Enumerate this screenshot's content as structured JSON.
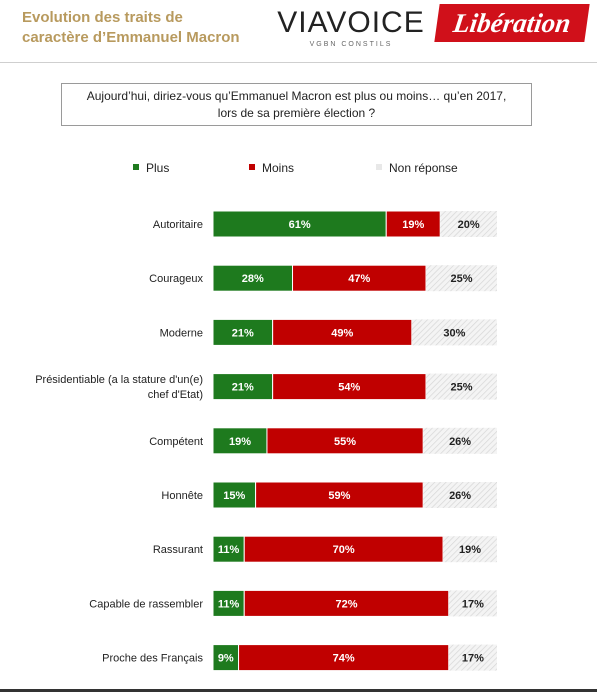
{
  "header": {
    "title_line1": "Evolution des traits de",
    "title_line2": "caractère d’Emmanuel Macron",
    "logo_viavoice": "VIAVOICE",
    "logo_viavoice_sub": "VGBN CONSTILS",
    "logo_liberation": "Libération"
  },
  "question": {
    "line1": "Aujourd’hui, diriez-vous qu’Emmanuel Macron est plus ou moins… qu’en 2017,",
    "line2": "lors de sa première élection ?"
  },
  "colors": {
    "plus": "#1e7a1e",
    "moins": "#c00000",
    "non_reponse": "#e8e8e8"
  },
  "chart_data": {
    "type": "bar",
    "orientation": "horizontal",
    "stacked": true,
    "unit": "%",
    "legend_placement": "top",
    "categories": [
      [
        "Autoritaire"
      ],
      [
        "Courageux"
      ],
      [
        "Moderne"
      ],
      [
        "Présidentiable (a la stature d'un(e)",
        "chef d'Etat)"
      ],
      [
        "Compétent"
      ],
      [
        "Honnête"
      ],
      [
        "Rassurant"
      ],
      [
        "Capable de rassembler"
      ],
      [
        "Proche des Français"
      ]
    ],
    "series": [
      {
        "name": "Plus",
        "values": [
          61,
          28,
          21,
          21,
          19,
          15,
          11,
          11,
          9
        ]
      },
      {
        "name": "Moins",
        "values": [
          19,
          47,
          49,
          54,
          55,
          59,
          70,
          72,
          74
        ]
      },
      {
        "name": "Non réponse",
        "values": [
          20,
          25,
          30,
          25,
          26,
          26,
          19,
          17,
          17
        ]
      }
    ]
  }
}
